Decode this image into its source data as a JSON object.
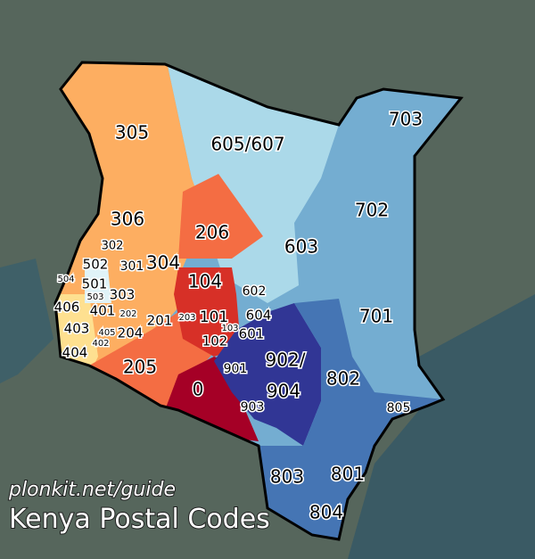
{
  "source": "plonkit.net/guide",
  "title": "Kenya Postal Codes",
  "regions": [
    {
      "label": "305"
    },
    {
      "label": "605/607"
    },
    {
      "label": "703"
    },
    {
      "label": "702"
    },
    {
      "label": "306"
    },
    {
      "label": "206"
    },
    {
      "label": "603"
    },
    {
      "label": "302"
    },
    {
      "label": "502"
    },
    {
      "label": "301"
    },
    {
      "label": "304"
    },
    {
      "label": "504"
    },
    {
      "label": "501"
    },
    {
      "label": "104"
    },
    {
      "label": "602"
    },
    {
      "label": "503"
    },
    {
      "label": "303"
    },
    {
      "label": "406"
    },
    {
      "label": "401"
    },
    {
      "label": "202"
    },
    {
      "label": "701"
    },
    {
      "label": "604"
    },
    {
      "label": "201"
    },
    {
      "label": "203"
    },
    {
      "label": "101"
    },
    {
      "label": "403"
    },
    {
      "label": "405"
    },
    {
      "label": "204"
    },
    {
      "label": "103"
    },
    {
      "label": "601"
    },
    {
      "label": "402"
    },
    {
      "label": "102"
    },
    {
      "label": "404"
    },
    {
      "label": "902/"
    },
    {
      "label": "205"
    },
    {
      "label": "901"
    },
    {
      "label": "802"
    },
    {
      "label": "0"
    },
    {
      "label": "904"
    },
    {
      "label": "903"
    },
    {
      "label": "805"
    },
    {
      "label": "803"
    },
    {
      "label": "801"
    },
    {
      "label": "804"
    }
  ]
}
